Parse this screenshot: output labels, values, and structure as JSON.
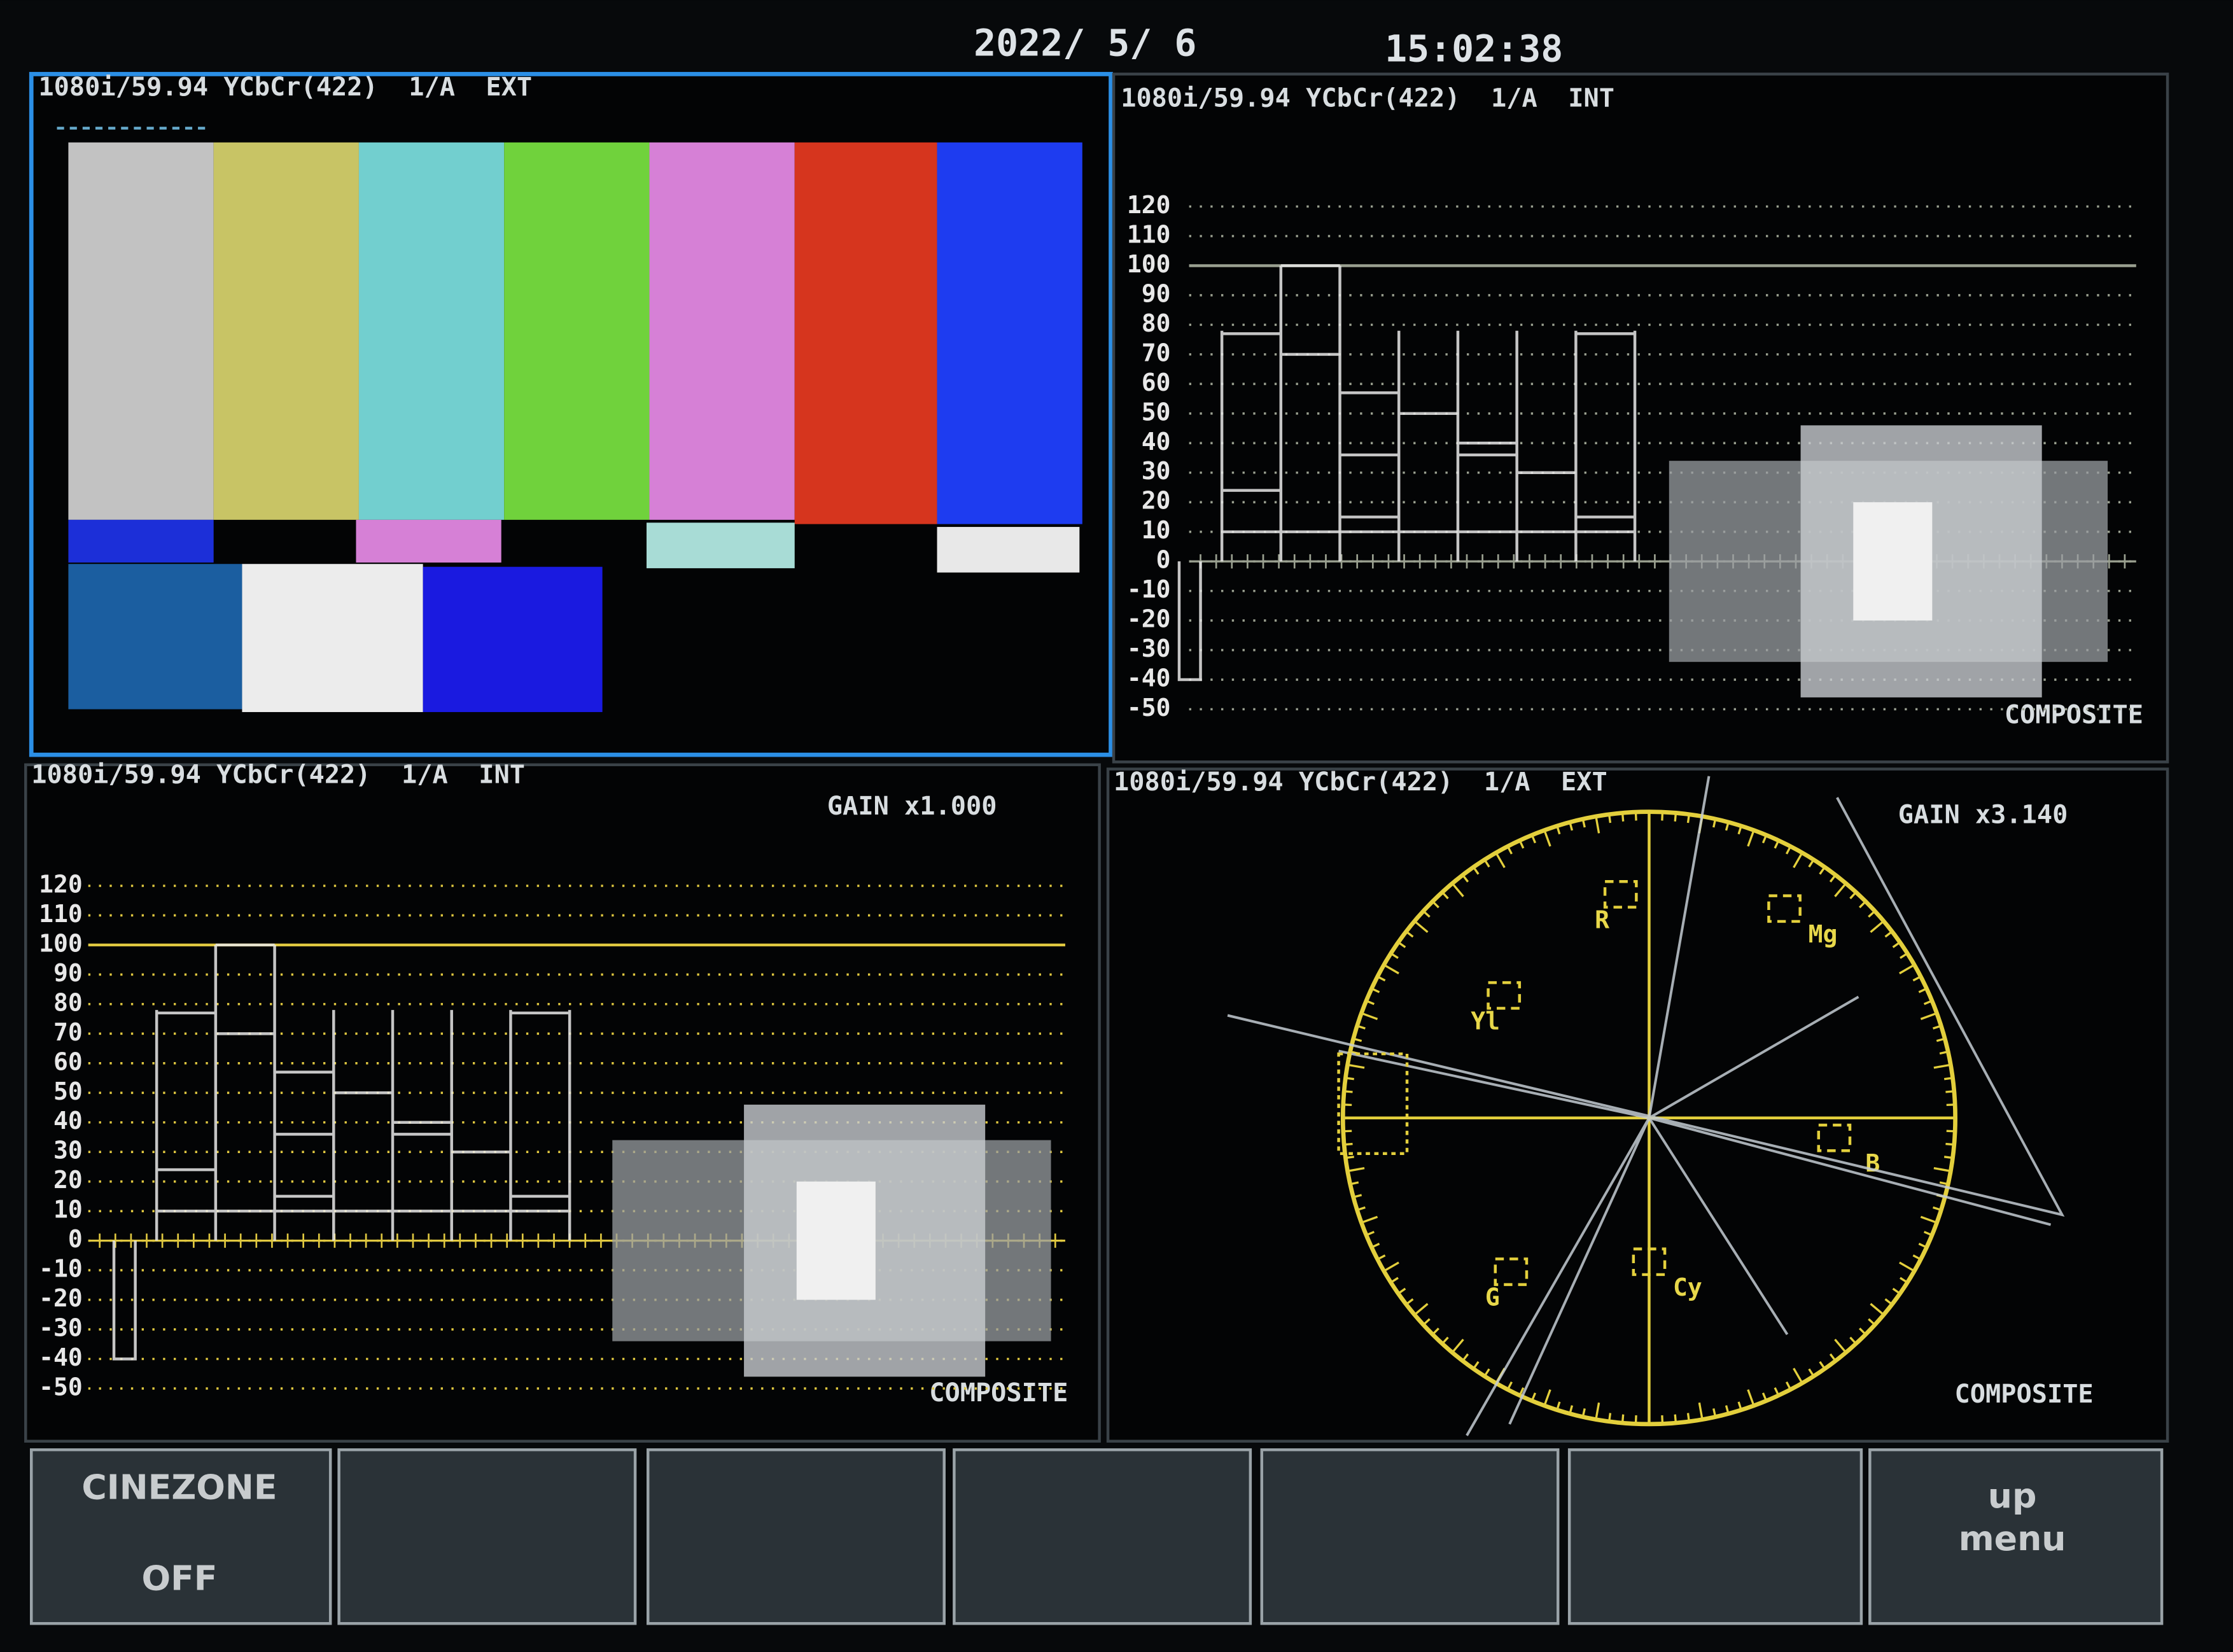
{
  "header": {
    "date": "2022/ 5/ 6",
    "time": "15:02:38"
  },
  "panels": [
    {
      "status": "1080i/59.94 YCbCr(422)  1/A  EXT"
    },
    {
      "status": "1080i/59.94 YCbCr(422)  1/A  INT",
      "scale": [
        120,
        110,
        100,
        90,
        80,
        70,
        60,
        50,
        40,
        30,
        20,
        10,
        0,
        -10,
        -20,
        -30,
        -40,
        -50
      ],
      "mode": "COMPOSITE"
    },
    {
      "status": "1080i/59.94 YCbCr(422)  1/A  INT",
      "gain": "GAIN x1.000",
      "scale": [
        120,
        110,
        100,
        90,
        80,
        70,
        60,
        50,
        40,
        30,
        20,
        10,
        0,
        -10,
        -20,
        -30,
        -40,
        -50
      ],
      "mode": "COMPOSITE"
    },
    {
      "status": "1080i/59.94 YCbCr(422)  1/A  EXT",
      "gain": "GAIN x3.140",
      "targets": [
        "R",
        "Mg",
        "Yl",
        "B",
        "G",
        "Cy"
      ],
      "mode": "COMPOSITE"
    }
  ],
  "buttons": {
    "first": [
      "CINEZONE",
      "OFF"
    ],
    "last": [
      "up",
      "menu"
    ]
  }
}
